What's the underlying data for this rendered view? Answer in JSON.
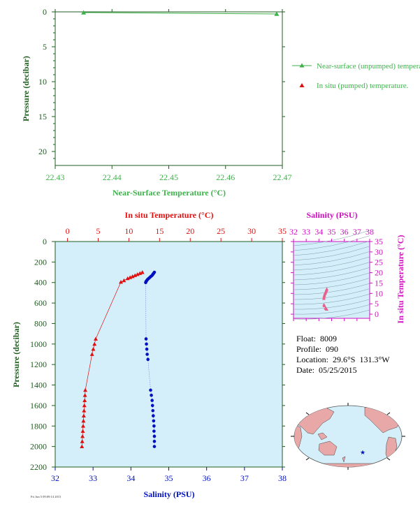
{
  "colors": {
    "green": "#3cb34a",
    "axis_green": "#1f5c1f",
    "red": "#e01010",
    "blue": "#0010c0",
    "magenta": "#d010c0",
    "plot_bg": "#d4effa",
    "pink": "#e8608c"
  },
  "info": {
    "float": "Float:  8009",
    "profile": "Profile:  090",
    "location": "Location:  29.6°S  131.3°W",
    "date": "Date:  05/25/2015"
  },
  "footnote": "Fri Jun 5 09:09:14 2015",
  "chart_data": [
    {
      "type": "line",
      "xlabel": "Near-Surface Temperature (°C)",
      "ylabel": "Pressure (decibar)",
      "xlim": [
        22.43,
        22.47
      ],
      "ylim": [
        0,
        22
      ],
      "y_inverted": true,
      "xticks": [
        "22.43",
        "22.44",
        "22.45",
        "22.46",
        "22.47"
      ],
      "yticks": [
        "0",
        "5",
        "10",
        "15",
        "20"
      ],
      "legend": [
        "Near-surface (unpumped) temperature.",
        "In situ (pumped) temperature."
      ],
      "series": [
        {
          "name": "Near-surface (unpumped) temperature.",
          "x": [
            22.435,
            22.469
          ],
          "y": [
            0.1,
            0.3
          ]
        }
      ]
    },
    {
      "type": "line",
      "top_xlabel": "In situ Temperature (°C)",
      "bottom_xlabel": "Salinity (PSU)",
      "ylabel": "Pressure (decibar)",
      "temp_xlim": [
        -2,
        35
      ],
      "sal_xlim": [
        32,
        38
      ],
      "ylim": [
        0,
        2200
      ],
      "y_inverted": true,
      "temp_ticks": [
        "0",
        "5",
        "10",
        "15",
        "20",
        "25",
        "30",
        "35"
      ],
      "sal_ticks": [
        "32",
        "33",
        "34",
        "35",
        "36",
        "37",
        "38"
      ],
      "pres_ticks": [
        "0",
        "200",
        "400",
        "600",
        "800",
        "1000",
        "1200",
        "1400",
        "1600",
        "1800",
        "2000",
        "2200"
      ],
      "temperature": {
        "p": [
          300,
          310,
          320,
          330,
          340,
          350,
          360,
          380,
          395,
          950,
          1000,
          1050,
          1100,
          1450,
          1500,
          1550,
          1600,
          1650,
          1700,
          1750,
          1800,
          1850,
          1900,
          1950,
          2000
        ],
        "t": [
          12.2,
          11.8,
          11.4,
          11.0,
          10.6,
          10.2,
          9.8,
          9.2,
          8.7,
          4.6,
          4.4,
          4.2,
          4.0,
          2.9,
          2.85,
          2.8,
          2.75,
          2.7,
          2.65,
          2.6,
          2.55,
          2.5,
          2.45,
          2.4,
          2.35
        ]
      },
      "salinity": {
        "p": [
          300,
          310,
          320,
          330,
          340,
          350,
          360,
          370,
          380,
          390,
          400,
          950,
          1000,
          1050,
          1100,
          1150,
          1450,
          1500,
          1550,
          1600,
          1650,
          1700,
          1750,
          1800,
          1850,
          1900,
          1950,
          2000
        ],
        "s": [
          34.62,
          34.6,
          34.58,
          34.56,
          34.53,
          34.5,
          34.47,
          34.44,
          34.42,
          34.4,
          34.39,
          34.4,
          34.41,
          34.42,
          34.43,
          34.45,
          34.52,
          34.54,
          34.56,
          34.57,
          34.58,
          34.59,
          34.6,
          34.61,
          34.61,
          34.62,
          34.62,
          34.62
        ]
      }
    },
    {
      "type": "scatter",
      "title": "Salinity (PSU)",
      "ylabel": "In situ Temperature (°C)",
      "xlim": [
        32,
        38
      ],
      "ylim": [
        -2,
        35
      ],
      "xticks": [
        "32",
        "33",
        "34",
        "35",
        "36",
        "37",
        "38"
      ],
      "yticks": [
        "0",
        "5",
        "10",
        "15",
        "20",
        "25",
        "30",
        "35"
      ],
      "points": {
        "s": [
          34.62,
          34.6,
          34.58,
          34.56,
          34.53,
          34.5,
          34.47,
          34.44,
          34.42,
          34.4,
          34.39,
          34.4,
          34.42,
          34.45,
          34.52,
          34.56,
          34.58,
          34.6,
          34.62
        ],
        "t": [
          12.2,
          11.8,
          11.4,
          11.0,
          10.6,
          10.2,
          9.8,
          9.2,
          8.7,
          8.0,
          7.5,
          4.6,
          4.2,
          4.0,
          2.9,
          2.75,
          2.6,
          2.45,
          2.35
        ]
      }
    }
  ]
}
